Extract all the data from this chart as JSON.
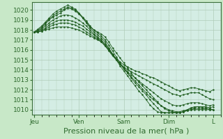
{
  "background_color": "#c8e8c8",
  "plot_bg_color": "#d4ede4",
  "grid_color": "#b0ccb8",
  "line_color": "#1e5c1e",
  "ylim": [
    1009.5,
    1020.8
  ],
  "yticks": [
    1010,
    1011,
    1012,
    1013,
    1014,
    1015,
    1016,
    1017,
    1018,
    1019,
    1020
  ],
  "xlabel": "Pression niveau de la mer( hPa )",
  "xlabel_fontsize": 8,
  "tick_fontsize": 6.5,
  "xtick_labels": [
    "Jeu",
    "Ven",
    "Sam",
    "Dim",
    "L"
  ],
  "xtick_positions": [
    0,
    24,
    48,
    72,
    96
  ],
  "xlim": [
    -1,
    100
  ],
  "series": [
    [
      0,
      1017.8,
      2,
      1017.9,
      4,
      1018.2,
      6,
      1018.6,
      8,
      1019.0,
      10,
      1019.3,
      12,
      1019.5,
      14,
      1019.7,
      16,
      1020.0,
      18,
      1020.2,
      20,
      1020.1,
      22,
      1019.9,
      24,
      1019.6,
      26,
      1019.2,
      28,
      1018.8,
      30,
      1018.3,
      32,
      1018.0,
      34,
      1017.8,
      36,
      1017.6,
      38,
      1017.3,
      40,
      1016.8,
      42,
      1016.2,
      44,
      1015.7,
      46,
      1015.2,
      48,
      1014.7,
      50,
      1014.2,
      52,
      1013.7,
      54,
      1013.2,
      56,
      1012.8,
      58,
      1012.4,
      60,
      1012.0,
      62,
      1011.6,
      64,
      1011.2,
      66,
      1010.8,
      68,
      1010.4,
      70,
      1010.1,
      72,
      1009.9,
      74,
      1009.8,
      76,
      1009.7,
      78,
      1009.7,
      80,
      1009.8,
      82,
      1010.0,
      84,
      1010.2,
      86,
      1010.3,
      88,
      1010.3,
      90,
      1010.2,
      92,
      1010.2,
      94,
      1010.1,
      96,
      1010.0
    ],
    [
      0,
      1017.8,
      2,
      1018.0,
      4,
      1018.3,
      6,
      1018.7,
      8,
      1019.1,
      10,
      1019.4,
      12,
      1019.7,
      14,
      1019.9,
      16,
      1020.1,
      18,
      1020.3,
      20,
      1020.2,
      22,
      1020.0,
      24,
      1019.7,
      26,
      1019.3,
      28,
      1018.9,
      30,
      1018.4,
      32,
      1018.0,
      34,
      1017.7,
      36,
      1017.4,
      38,
      1017.0,
      40,
      1016.5,
      42,
      1015.9,
      44,
      1015.3,
      46,
      1014.7,
      48,
      1014.2,
      50,
      1013.7,
      52,
      1013.2,
      54,
      1012.7,
      56,
      1012.3,
      58,
      1011.9,
      60,
      1011.5,
      62,
      1011.0,
      64,
      1010.6,
      66,
      1010.2,
      68,
      1009.8,
      70,
      1009.7,
      72,
      1009.7,
      74,
      1009.7,
      76,
      1009.7,
      78,
      1009.7,
      80,
      1009.8,
      82,
      1009.9,
      84,
      1010.0,
      86,
      1010.1,
      88,
      1010.1,
      90,
      1010.1,
      92,
      1010.1,
      94,
      1010.0,
      96,
      1010.0
    ],
    [
      0,
      1017.8,
      2,
      1018.1,
      4,
      1018.4,
      6,
      1018.8,
      8,
      1019.2,
      10,
      1019.6,
      12,
      1019.9,
      14,
      1020.1,
      16,
      1020.3,
      18,
      1020.5,
      20,
      1020.3,
      22,
      1020.1,
      24,
      1019.7,
      26,
      1019.2,
      28,
      1018.7,
      30,
      1018.2,
      32,
      1017.8,
      34,
      1017.5,
      36,
      1017.2,
      38,
      1016.8,
      40,
      1016.2,
      42,
      1015.6,
      44,
      1015.0,
      46,
      1014.4,
      48,
      1013.9,
      50,
      1013.4,
      52,
      1012.9,
      54,
      1012.4,
      56,
      1011.9,
      58,
      1011.5,
      60,
      1011.0,
      62,
      1010.5,
      64,
      1010.1,
      66,
      1009.8,
      68,
      1009.7,
      70,
      1009.7,
      72,
      1009.7,
      74,
      1009.7,
      76,
      1009.7,
      78,
      1009.7,
      80,
      1009.8,
      82,
      1009.9,
      84,
      1010.0,
      86,
      1010.0,
      88,
      1010.0,
      90,
      1010.0,
      92,
      1010.0,
      94,
      1010.0,
      96,
      1010.0
    ],
    [
      0,
      1017.8,
      2,
      1017.9,
      4,
      1018.1,
      6,
      1018.4,
      8,
      1018.7,
      10,
      1019.0,
      12,
      1019.2,
      14,
      1019.4,
      16,
      1019.5,
      18,
      1019.5,
      20,
      1019.4,
      22,
      1019.2,
      24,
      1019.0,
      26,
      1018.7,
      28,
      1018.4,
      30,
      1018.0,
      32,
      1017.6,
      34,
      1017.3,
      36,
      1017.0,
      38,
      1016.6,
      40,
      1016.1,
      42,
      1015.6,
      44,
      1015.1,
      46,
      1014.6,
      48,
      1014.1,
      50,
      1013.7,
      52,
      1013.3,
      54,
      1012.9,
      56,
      1012.5,
      58,
      1012.1,
      60,
      1011.7,
      62,
      1011.3,
      64,
      1011.0,
      66,
      1010.7,
      68,
      1010.4,
      70,
      1010.2,
      72,
      1010.0,
      74,
      1009.9,
      76,
      1009.8,
      78,
      1009.8,
      80,
      1009.9,
      82,
      1010.0,
      84,
      1010.1,
      86,
      1010.2,
      88,
      1010.3,
      90,
      1010.3,
      92,
      1010.3,
      94,
      1010.2,
      96,
      1010.3
    ],
    [
      0,
      1017.8,
      2,
      1017.8,
      4,
      1018.0,
      6,
      1018.2,
      8,
      1018.5,
      10,
      1018.7,
      12,
      1018.9,
      14,
      1019.0,
      16,
      1019.0,
      18,
      1019.0,
      20,
      1018.9,
      22,
      1018.8,
      24,
      1018.6,
      26,
      1018.4,
      28,
      1018.1,
      30,
      1017.8,
      32,
      1017.5,
      34,
      1017.2,
      36,
      1016.9,
      38,
      1016.5,
      40,
      1016.0,
      42,
      1015.5,
      44,
      1015.0,
      46,
      1014.6,
      48,
      1014.2,
      50,
      1013.8,
      52,
      1013.5,
      54,
      1013.2,
      56,
      1012.9,
      58,
      1012.6,
      60,
      1012.3,
      62,
      1012.0,
      64,
      1011.7,
      66,
      1011.4,
      68,
      1011.1,
      70,
      1010.9,
      72,
      1010.7,
      74,
      1010.5,
      76,
      1010.4,
      78,
      1010.4,
      80,
      1010.5,
      82,
      1010.6,
      84,
      1010.7,
      86,
      1010.7,
      88,
      1010.7,
      90,
      1010.6,
      92,
      1010.5,
      94,
      1010.4,
      96,
      1010.5
    ],
    [
      0,
      1017.8,
      2,
      1017.8,
      4,
      1017.9,
      6,
      1018.1,
      8,
      1018.3,
      10,
      1018.5,
      12,
      1018.6,
      14,
      1018.7,
      16,
      1018.7,
      18,
      1018.7,
      20,
      1018.6,
      22,
      1018.5,
      24,
      1018.3,
      26,
      1018.1,
      28,
      1017.8,
      30,
      1017.6,
      32,
      1017.3,
      34,
      1017.1,
      36,
      1016.8,
      38,
      1016.4,
      40,
      1015.9,
      42,
      1015.4,
      44,
      1015.0,
      46,
      1014.6,
      48,
      1014.3,
      50,
      1014.0,
      52,
      1013.8,
      54,
      1013.6,
      56,
      1013.4,
      58,
      1013.2,
      60,
      1013.0,
      62,
      1012.8,
      64,
      1012.6,
      66,
      1012.4,
      68,
      1012.2,
      70,
      1012.0,
      72,
      1011.8,
      74,
      1011.6,
      76,
      1011.5,
      78,
      1011.4,
      80,
      1011.5,
      82,
      1011.6,
      84,
      1011.7,
      86,
      1011.7,
      88,
      1011.7,
      90,
      1011.5,
      92,
      1011.3,
      94,
      1011.1,
      96,
      1011.0
    ],
    [
      0,
      1017.8,
      2,
      1017.8,
      4,
      1017.9,
      6,
      1018.0,
      8,
      1018.1,
      10,
      1018.2,
      12,
      1018.3,
      14,
      1018.3,
      16,
      1018.3,
      18,
      1018.3,
      20,
      1018.2,
      22,
      1018.1,
      24,
      1018.0,
      26,
      1017.8,
      28,
      1017.6,
      30,
      1017.4,
      32,
      1017.2,
      34,
      1017.0,
      36,
      1016.8,
      38,
      1016.4,
      40,
      1016.0,
      42,
      1015.5,
      44,
      1015.1,
      46,
      1014.8,
      48,
      1014.5,
      50,
      1014.3,
      52,
      1014.1,
      54,
      1013.9,
      56,
      1013.8,
      58,
      1013.6,
      60,
      1013.5,
      62,
      1013.3,
      64,
      1013.2,
      66,
      1013.0,
      68,
      1012.8,
      70,
      1012.6,
      72,
      1012.4,
      74,
      1012.2,
      76,
      1012.0,
      78,
      1011.9,
      80,
      1012.0,
      82,
      1012.1,
      84,
      1012.2,
      86,
      1012.2,
      88,
      1012.1,
      90,
      1012.0,
      92,
      1011.9,
      94,
      1011.8,
      96,
      1012.0
    ]
  ]
}
